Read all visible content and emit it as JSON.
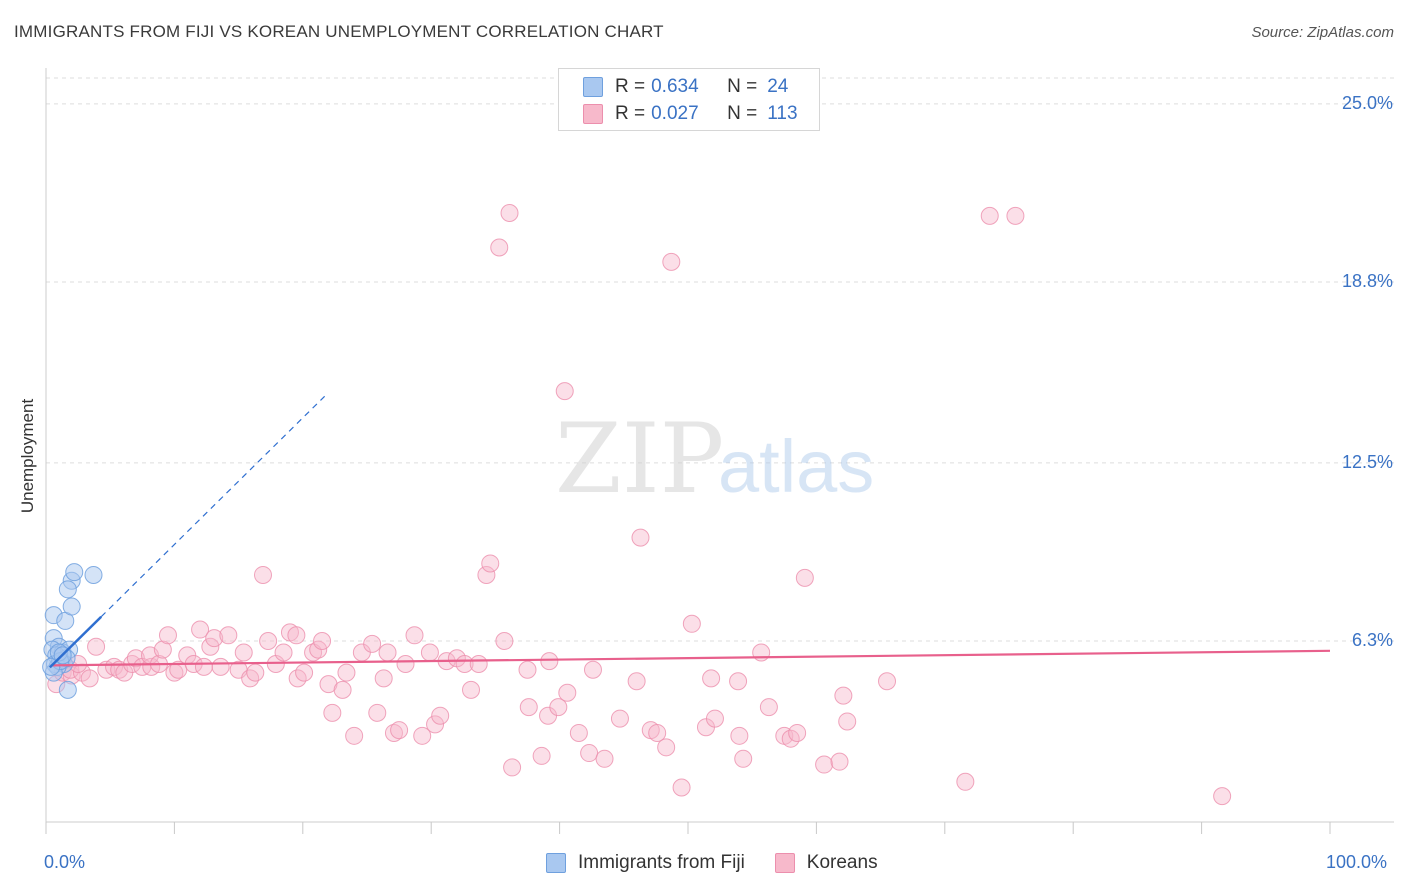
{
  "title": "IMMIGRANTS FROM FIJI VS KOREAN UNEMPLOYMENT CORRELATION CHART",
  "source": "Source: ZipAtlas.com",
  "watermark": {
    "zip": "ZIP",
    "atlas": "atlas"
  },
  "legend_top": {
    "fiji": {
      "r_label": "R =",
      "r_value": "0.634",
      "n_label": "N =",
      "n_value": "24"
    },
    "korean": {
      "r_label": "R =",
      "r_value": "0.027",
      "n_label": "N =",
      "n_value": "113"
    }
  },
  "legend_bottom": {
    "fiji": "Immigrants from Fiji",
    "korean": "Koreans"
  },
  "colors": {
    "fiji_fill": "#a9c8f0",
    "fiji_stroke": "#6fa0de",
    "fiji_line": "#2f6fd0",
    "korean_fill": "#f7b9cb",
    "korean_stroke": "#ec8fad",
    "korean_line": "#e8608c",
    "grid": "#dddddd",
    "axis_label": "#3a72c4"
  },
  "chart_data": {
    "type": "scatter",
    "title": "IMMIGRANTS FROM FIJI VS KOREAN UNEMPLOYMENT CORRELATION CHART",
    "xlabel": "",
    "ylabel": "Unemployment",
    "xlim": [
      0,
      100
    ],
    "ylim": [
      0,
      25.9
    ],
    "x_tick_labels": {
      "min": "0.0%",
      "max": "100.0%"
    },
    "y_ticks": [
      {
        "value": 6.3,
        "label": "6.3%"
      },
      {
        "value": 12.5,
        "label": "12.5%"
      },
      {
        "value": 18.8,
        "label": "18.8%"
      },
      {
        "value": 25.0,
        "label": "25.0%"
      }
    ],
    "series": [
      {
        "name": "Immigrants from Fiji",
        "R": 0.634,
        "N": 24,
        "trend": {
          "slope": 0.441,
          "intercept": 5.25,
          "solid_x": [
            0.3,
            4.3
          ],
          "dashed_x": [
            4.3,
            21.7
          ]
        },
        "points": [
          [
            0.6,
            7.2
          ],
          [
            1.5,
            7.0
          ],
          [
            0.6,
            6.4
          ],
          [
            1.0,
            6.1
          ],
          [
            0.5,
            6.0
          ],
          [
            1.3,
            5.9
          ],
          [
            1.8,
            6.0
          ],
          [
            0.8,
            5.8
          ],
          [
            1.2,
            5.6
          ],
          [
            0.7,
            5.5
          ],
          [
            1.4,
            5.5
          ],
          [
            0.9,
            5.4
          ],
          [
            0.6,
            5.2
          ],
          [
            1.6,
            5.7
          ],
          [
            2.0,
            8.4
          ],
          [
            2.2,
            8.7
          ],
          [
            1.7,
            8.1
          ],
          [
            2.0,
            7.5
          ],
          [
            3.7,
            8.6
          ],
          [
            1.7,
            4.6
          ],
          [
            1.1,
            5.6
          ],
          [
            0.4,
            5.4
          ],
          [
            1.0,
            5.9
          ],
          [
            1.3,
            5.8
          ]
        ]
      },
      {
        "name": "Koreans",
        "R": 0.027,
        "N": 113,
        "trend": {
          "slope": 0.0051,
          "intercept": 5.45,
          "x_range": [
            0.5,
            100
          ]
        },
        "points": [
          [
            0.8,
            4.8
          ],
          [
            1.3,
            5.2
          ],
          [
            2.0,
            5.1
          ],
          [
            1.9,
            5.3
          ],
          [
            2.8,
            5.2
          ],
          [
            3.4,
            5.0
          ],
          [
            3.9,
            6.1
          ],
          [
            2.5,
            5.5
          ],
          [
            4.7,
            5.3
          ],
          [
            5.3,
            5.4
          ],
          [
            5.7,
            5.3
          ],
          [
            6.1,
            5.2
          ],
          [
            6.7,
            5.5
          ],
          [
            7.0,
            5.7
          ],
          [
            7.5,
            5.4
          ],
          [
            8.2,
            5.4
          ],
          [
            8.1,
            5.8
          ],
          [
            8.8,
            5.5
          ],
          [
            9.1,
            6.0
          ],
          [
            9.5,
            6.5
          ],
          [
            10.0,
            5.2
          ],
          [
            10.3,
            5.3
          ],
          [
            11.0,
            5.8
          ],
          [
            11.5,
            5.5
          ],
          [
            12.0,
            6.7
          ],
          [
            12.3,
            5.4
          ],
          [
            12.8,
            6.1
          ],
          [
            13.1,
            6.4
          ],
          [
            13.6,
            5.4
          ],
          [
            14.2,
            6.5
          ],
          [
            15.0,
            5.3
          ],
          [
            15.4,
            5.9
          ],
          [
            15.9,
            5.0
          ],
          [
            16.3,
            5.2
          ],
          [
            16.9,
            8.6
          ],
          [
            17.3,
            6.3
          ],
          [
            17.9,
            5.5
          ],
          [
            18.5,
            5.9
          ],
          [
            19.0,
            6.6
          ],
          [
            19.5,
            6.5
          ],
          [
            19.6,
            5.0
          ],
          [
            20.1,
            5.2
          ],
          [
            20.8,
            5.9
          ],
          [
            21.2,
            6.0
          ],
          [
            21.5,
            6.3
          ],
          [
            22.0,
            4.8
          ],
          [
            22.3,
            3.8
          ],
          [
            23.1,
            4.6
          ],
          [
            23.4,
            5.2
          ],
          [
            24.0,
            3.0
          ],
          [
            24.6,
            5.9
          ],
          [
            25.4,
            6.2
          ],
          [
            25.8,
            3.8
          ],
          [
            26.3,
            5.0
          ],
          [
            26.6,
            5.9
          ],
          [
            27.1,
            3.1
          ],
          [
            27.5,
            3.2
          ],
          [
            28.0,
            5.5
          ],
          [
            28.7,
            6.5
          ],
          [
            29.3,
            3.0
          ],
          [
            29.9,
            5.9
          ],
          [
            30.3,
            3.4
          ],
          [
            30.7,
            3.7
          ],
          [
            31.2,
            5.6
          ],
          [
            32.0,
            5.7
          ],
          [
            32.6,
            5.5
          ],
          [
            33.1,
            4.6
          ],
          [
            33.7,
            5.5
          ],
          [
            34.3,
            8.6
          ],
          [
            34.6,
            9.0
          ],
          [
            35.3,
            20.0
          ],
          [
            35.7,
            6.3
          ],
          [
            36.1,
            21.2
          ],
          [
            36.3,
            1.9
          ],
          [
            37.5,
            5.3
          ],
          [
            37.6,
            4.0
          ],
          [
            38.6,
            2.3
          ],
          [
            39.1,
            3.7
          ],
          [
            39.2,
            5.6
          ],
          [
            39.9,
            4.0
          ],
          [
            40.4,
            15.0
          ],
          [
            40.6,
            4.5
          ],
          [
            41.5,
            3.1
          ],
          [
            42.3,
            2.4
          ],
          [
            42.6,
            5.3
          ],
          [
            43.5,
            2.2
          ],
          [
            44.7,
            3.6
          ],
          [
            46.0,
            4.9
          ],
          [
            46.3,
            9.9
          ],
          [
            47.1,
            3.2
          ],
          [
            47.6,
            3.1
          ],
          [
            48.3,
            2.6
          ],
          [
            48.7,
            19.5
          ],
          [
            49.5,
            1.2
          ],
          [
            50.3,
            6.9
          ],
          [
            51.4,
            3.3
          ],
          [
            51.8,
            5.0
          ],
          [
            52.1,
            3.6
          ],
          [
            53.9,
            4.9
          ],
          [
            54.0,
            3.0
          ],
          [
            54.3,
            2.2
          ],
          [
            55.7,
            5.9
          ],
          [
            56.3,
            4.0
          ],
          [
            57.5,
            3.0
          ],
          [
            58.0,
            2.9
          ],
          [
            58.5,
            3.1
          ],
          [
            59.1,
            8.5
          ],
          [
            60.6,
            2.0
          ],
          [
            61.8,
            2.1
          ],
          [
            62.1,
            4.4
          ],
          [
            62.4,
            3.5
          ],
          [
            65.5,
            4.9
          ],
          [
            71.6,
            1.4
          ],
          [
            73.5,
            21.1
          ],
          [
            75.5,
            21.1
          ],
          [
            91.6,
            0.9
          ]
        ]
      }
    ]
  }
}
